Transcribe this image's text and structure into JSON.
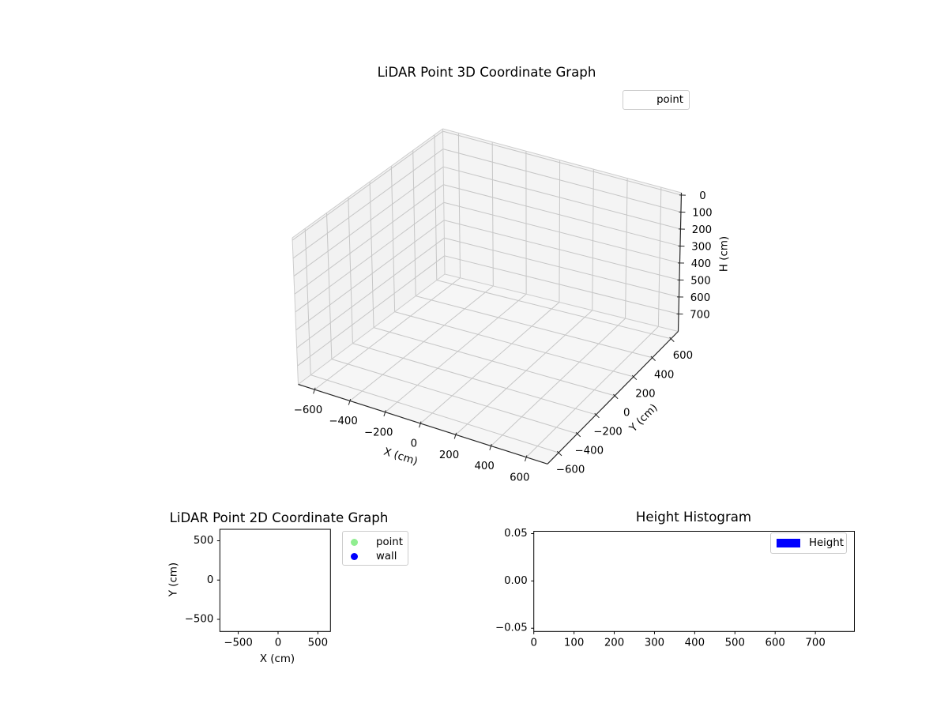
{
  "figure": {
    "background": "#ffffff",
    "text_color": "#000000"
  },
  "chart_data": [
    {
      "id": "plot3d",
      "type": "scatter",
      "projection": "3d",
      "title": "LiDAR Point 3D Coordinate Graph",
      "xlabel": "X (cm)",
      "ylabel": "Y (cm)",
      "zlabel": "H (cm)",
      "x_ticks": [
        -600,
        -400,
        -200,
        0,
        200,
        400,
        600
      ],
      "y_ticks": [
        600,
        400,
        200,
        0,
        -200,
        -400,
        -600
      ],
      "z_ticks": [
        0,
        100,
        200,
        300,
        400,
        500,
        600,
        700
      ],
      "z_axis_inverted": true,
      "grid": true,
      "legend": [
        {
          "label": "point",
          "marker": "none"
        }
      ],
      "legend_position": "upper right outside",
      "series": [
        {
          "name": "point",
          "points": []
        }
      ],
      "pane_color_wall_left": "#f2f2f2",
      "pane_color_wall_right": "#f4f4f4",
      "pane_color_floor": "#f6f6f6",
      "grid_color": "#c6c6c6"
    },
    {
      "id": "plot2d",
      "type": "scatter",
      "title": "LiDAR Point 2D Coordinate Graph",
      "xlabel": "X (cm)",
      "ylabel": "Y (cm)",
      "x_ticks": [
        -500,
        0,
        500
      ],
      "y_ticks": [
        500,
        0,
        -500
      ],
      "xlim": [
        -731,
        658
      ],
      "ylim": [
        -654,
        646
      ],
      "grid": false,
      "legend": [
        {
          "label": "point",
          "marker": "circle",
          "marker_color": "#90ee90"
        },
        {
          "label": "wall",
          "marker": "circle",
          "marker_color": "#0000ff"
        }
      ],
      "legend_position": "right outside",
      "series": [
        {
          "name": "point",
          "points": []
        },
        {
          "name": "wall",
          "points": []
        }
      ]
    },
    {
      "id": "histogram",
      "type": "bar",
      "title": "Height Histogram",
      "xlabel": "",
      "ylabel": "",
      "x_ticks": [
        0,
        100,
        200,
        300,
        400,
        500,
        600,
        700
      ],
      "y_ticks": [
        0.05,
        0.0,
        -0.05
      ],
      "xlim": [
        0,
        797
      ],
      "ylim": [
        -0.0534,
        0.0525
      ],
      "grid": false,
      "legend": [
        {
          "label": "Height",
          "marker": "rect",
          "marker_color": "#0000ff"
        }
      ],
      "legend_position": "upper right inside",
      "values": []
    }
  ]
}
